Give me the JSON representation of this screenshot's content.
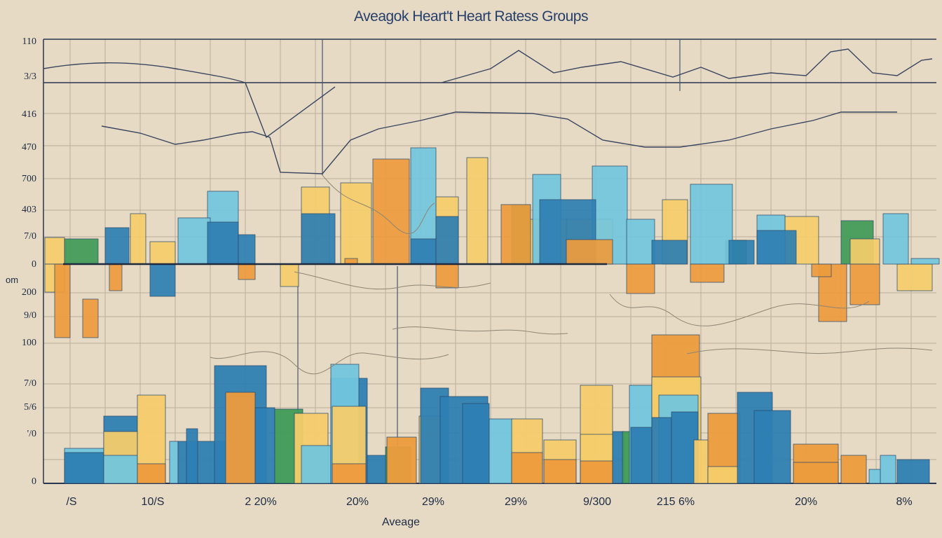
{
  "chart_data": {
    "type": "bar",
    "title": "Aveagok Heart't Heart Ratess Groups",
    "xlabel": "Aveage",
    "ylabel": "om",
    "y_ticks": [
      "110",
      "3/3",
      "416",
      "470",
      "700",
      "403",
      "7/0",
      "0",
      "200",
      "9/0",
      "100",
      "7/0",
      "5/6",
      "'/0",
      "0"
    ],
    "x_ticks": [
      "/S",
      "10/S",
      "2 20%",
      "20%",
      "29%",
      "29%",
      "9/300",
      "215 6%",
      "20%",
      "8%"
    ],
    "grid": true,
    "colors": {
      "dark_blue": "#2e7fb3",
      "light_blue": "#72c6de",
      "orange": "#ee9c3d",
      "yellow": "#f6cd6b",
      "green": "#3f9b57",
      "line": "#3a4660",
      "grid": "#b9ae9c"
    },
    "series": [
      {
        "color": "orange",
        "values": [
          {
            "x": 78,
            "w": 22,
            "base": 0,
            "top": -105
          },
          {
            "x": 118,
            "w": 22,
            "base": -105,
            "top": -50
          },
          {
            "x": 156,
            "w": 18,
            "base": 0,
            "top": -38
          },
          {
            "x": 340,
            "w": 24,
            "base": 0,
            "top": -22
          },
          {
            "x": 492,
            "w": 18,
            "base": 0,
            "top": 8
          },
          {
            "x": 532,
            "w": 52,
            "base": 0,
            "top": 150
          },
          {
            "x": 622,
            "w": 32,
            "base": 0,
            "top": -34
          },
          {
            "x": 715,
            "w": 42,
            "base": 0,
            "top": 85
          },
          {
            "x": 808,
            "w": 66,
            "base": 0,
            "top": 35
          },
          {
            "x": 894,
            "w": 40,
            "base": 0,
            "top": -42
          },
          {
            "x": 985,
            "w": 48,
            "base": 0,
            "top": -26
          },
          {
            "x": 1168,
            "w": 40,
            "base": 0,
            "top": -82
          },
          {
            "x": 1213,
            "w": 42,
            "base": -58,
            "top": 0
          },
          {
            "x": 1158,
            "w": 28,
            "base": 0,
            "top": -18
          }
        ]
      },
      {
        "color": "light_blue",
        "values": [
          {
            "x": 296,
            "w": 44,
            "base": 0,
            "top": 104
          },
          {
            "x": 254,
            "w": 46,
            "base": 0,
            "top": 66
          },
          {
            "x": 586,
            "w": 36,
            "base": 0,
            "top": 166
          },
          {
            "x": 760,
            "w": 40,
            "base": 0,
            "top": 128
          },
          {
            "x": 845,
            "w": 50,
            "base": 0,
            "top": 140
          },
          {
            "x": 894,
            "w": 40,
            "base": 0,
            "top": 64
          },
          {
            "x": 985,
            "w": 60,
            "base": 0,
            "top": 114
          },
          {
            "x": 1080,
            "w": 40,
            "base": 0,
            "top": 70
          },
          {
            "x": 1260,
            "w": 36,
            "base": 0,
            "top": 72
          },
          {
            "x": 1300,
            "w": 40,
            "base": 0,
            "top": 8
          }
        ]
      },
      {
        "color": "dark_blue",
        "values": [
          {
            "x": 150,
            "w": 34,
            "base": 0,
            "top": 52
          },
          {
            "x": 214,
            "w": 36,
            "base": 0,
            "top": -46
          },
          {
            "x": 296,
            "w": 44,
            "base": 0,
            "top": 60
          },
          {
            "x": 340,
            "w": 24,
            "base": 0,
            "top": 42
          },
          {
            "x": 430,
            "w": 48,
            "base": 0,
            "top": 72
          },
          {
            "x": 586,
            "w": 36,
            "base": 0,
            "top": 36
          },
          {
            "x": 622,
            "w": 32,
            "base": 0,
            "top": 68
          },
          {
            "x": 770,
            "w": 80,
            "base": 0,
            "top": 92
          },
          {
            "x": 930,
            "w": 50,
            "base": 0,
            "top": 34
          },
          {
            "x": 1080,
            "w": 56,
            "base": 0,
            "top": 48
          },
          {
            "x": 1040,
            "w": 36,
            "base": 0,
            "top": 34
          }
        ]
      },
      {
        "color": "yellow",
        "values": [
          {
            "x": 64,
            "w": 28,
            "base": 0,
            "top": 38
          },
          {
            "x": 64,
            "w": 28,
            "base": 0,
            "top": -40
          },
          {
            "x": 186,
            "w": 22,
            "base": 0,
            "top": 72
          },
          {
            "x": 214,
            "w": 36,
            "base": 0,
            "top": 32
          },
          {
            "x": 400,
            "w": 26,
            "base": 0,
            "top": -32
          },
          {
            "x": 430,
            "w": 40,
            "base": 0,
            "top": 110
          },
          {
            "x": 486,
            "w": 44,
            "base": 0,
            "top": 116
          },
          {
            "x": 622,
            "w": 32,
            "base": 0,
            "top": 96
          },
          {
            "x": 666,
            "w": 30,
            "base": 0,
            "top": 152
          },
          {
            "x": 755,
            "w": 54,
            "base": 0,
            "top": 64
          },
          {
            "x": 808,
            "w": 66,
            "base": 0,
            "top": 64
          },
          {
            "x": 945,
            "w": 36,
            "base": 0,
            "top": 92
          },
          {
            "x": 1120,
            "w": 48,
            "base": 0,
            "top": 68
          },
          {
            "x": 1213,
            "w": 42,
            "base": 0,
            "top": 36
          },
          {
            "x": 1280,
            "w": 50,
            "base": 0,
            "top": -38
          }
        ]
      },
      {
        "color": "green",
        "values": [
          {
            "x": 92,
            "w": 48,
            "base": 0,
            "top": 36
          },
          {
            "x": 730,
            "w": 26,
            "base": 0,
            "top": 84
          },
          {
            "x": 1035,
            "w": 30,
            "base": 0,
            "top": 34
          },
          {
            "x": 1200,
            "w": 46,
            "base": 0,
            "top": 62
          }
        ]
      }
    ],
    "lower_bars": [
      {
        "x": 92,
        "w": 56,
        "top": 50,
        "color": "light_blue"
      },
      {
        "x": 92,
        "w": 56,
        "top": 44,
        "color": "dark_blue"
      },
      {
        "x": 148,
        "w": 48,
        "top": 96,
        "color": "dark_blue"
      },
      {
        "x": 148,
        "w": 48,
        "top": 74,
        "color": "yellow"
      },
      {
        "x": 148,
        "w": 48,
        "top": 40,
        "color": "light_blue"
      },
      {
        "x": 196,
        "w": 40,
        "top": 126,
        "color": "yellow"
      },
      {
        "x": 196,
        "w": 40,
        "top": 28,
        "color": "orange"
      },
      {
        "x": 242,
        "w": 12,
        "top": 60,
        "color": "light_blue"
      },
      {
        "x": 254,
        "w": 68,
        "top": 60,
        "color": "dark_blue"
      },
      {
        "x": 266,
        "w": 16,
        "top": 78,
        "color": "dark_blue"
      },
      {
        "x": 306,
        "w": 74,
        "top": 168,
        "color": "dark_blue"
      },
      {
        "x": 322,
        "w": 42,
        "top": 130,
        "color": "orange"
      },
      {
        "x": 364,
        "w": 28,
        "top": 108,
        "color": "dark_blue"
      },
      {
        "x": 392,
        "w": 40,
        "top": 106,
        "color": "green"
      },
      {
        "x": 420,
        "w": 48,
        "top": 100,
        "color": "yellow"
      },
      {
        "x": 430,
        "w": 42,
        "top": 54,
        "color": "light_blue"
      },
      {
        "x": 472,
        "w": 52,
        "top": 150,
        "color": "dark_blue"
      },
      {
        "x": 472,
        "w": 40,
        "top": 170,
        "color": "light_blue"
      },
      {
        "x": 474,
        "w": 48,
        "top": 110,
        "color": "yellow"
      },
      {
        "x": 474,
        "w": 48,
        "top": 28,
        "color": "orange"
      },
      {
        "x": 524,
        "w": 28,
        "top": 40,
        "color": "dark_blue"
      },
      {
        "x": 550,
        "w": 36,
        "top": 52,
        "color": "green"
      },
      {
        "x": 552,
        "w": 42,
        "top": 66,
        "color": "orange"
      },
      {
        "x": 598,
        "w": 38,
        "top": 96,
        "color": "yellow"
      },
      {
        "x": 600,
        "w": 40,
        "top": 136,
        "color": "dark_blue"
      },
      {
        "x": 628,
        "w": 68,
        "top": 124,
        "color": "dark_blue"
      },
      {
        "x": 660,
        "w": 38,
        "top": 114,
        "color": "dark_blue"
      },
      {
        "x": 698,
        "w": 34,
        "top": 92,
        "color": "light_blue"
      },
      {
        "x": 730,
        "w": 44,
        "top": 92,
        "color": "yellow"
      },
      {
        "x": 730,
        "w": 44,
        "top": 44,
        "color": "orange"
      },
      {
        "x": 776,
        "w": 46,
        "top": 62,
        "color": "yellow"
      },
      {
        "x": 776,
        "w": 46,
        "top": 34,
        "color": "orange"
      },
      {
        "x": 828,
        "w": 46,
        "top": 140,
        "color": "yellow"
      },
      {
        "x": 828,
        "w": 46,
        "top": 70,
        "color": "yellow"
      },
      {
        "x": 828,
        "w": 46,
        "top": 32,
        "color": "orange"
      },
      {
        "x": 874,
        "w": 16,
        "top": 74,
        "color": "dark_blue"
      },
      {
        "x": 888,
        "w": 22,
        "top": 74,
        "color": "green"
      },
      {
        "x": 898,
        "w": 32,
        "top": 140,
        "color": "light_blue"
      },
      {
        "x": 900,
        "w": 40,
        "top": 80,
        "color": "dark_blue"
      },
      {
        "x": 930,
        "w": 68,
        "top": 212,
        "color": "orange"
      },
      {
        "x": 930,
        "w": 70,
        "top": 152,
        "color": "yellow"
      },
      {
        "x": 940,
        "w": 56,
        "top": 126,
        "color": "light_blue"
      },
      {
        "x": 930,
        "w": 28,
        "top": 94,
        "color": "dark_blue"
      },
      {
        "x": 958,
        "w": 38,
        "top": 102,
        "color": "dark_blue"
      },
      {
        "x": 990,
        "w": 22,
        "top": 62,
        "color": "yellow"
      },
      {
        "x": 1010,
        "w": 46,
        "top": 100,
        "color": "orange"
      },
      {
        "x": 1010,
        "w": 46,
        "top": 24,
        "color": "yellow"
      },
      {
        "x": 1052,
        "w": 50,
        "top": 130,
        "color": "dark_blue"
      },
      {
        "x": 1076,
        "w": 52,
        "top": 104,
        "color": "dark_blue"
      },
      {
        "x": 1132,
        "w": 64,
        "top": 56,
        "color": "orange"
      },
      {
        "x": 1132,
        "w": 64,
        "top": 30,
        "color": "orange"
      },
      {
        "x": 1200,
        "w": 36,
        "top": 40,
        "color": "orange"
      },
      {
        "x": 1240,
        "w": 16,
        "top": 20,
        "color": "light_blue"
      },
      {
        "x": 1256,
        "w": 22,
        "top": 40,
        "color": "light_blue"
      },
      {
        "x": 1280,
        "w": 46,
        "top": 34,
        "color": "dark_blue"
      }
    ]
  }
}
